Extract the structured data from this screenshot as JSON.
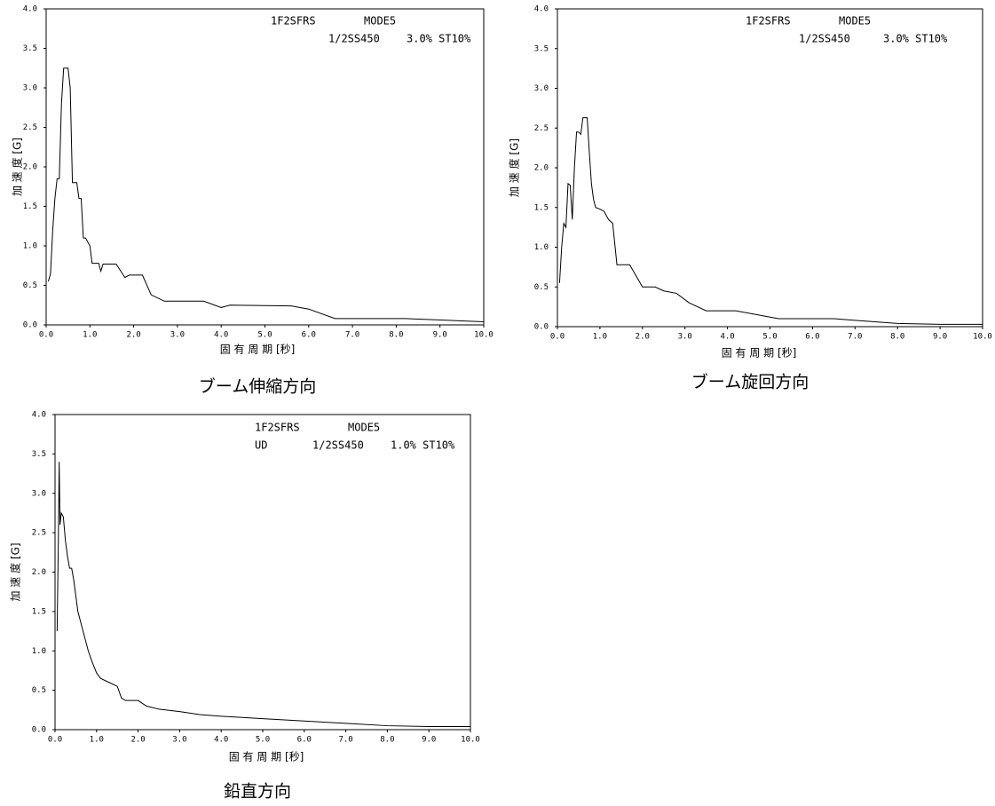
{
  "chart_data": [
    {
      "type": "line",
      "caption": "ブーム伸縮方向",
      "xlabel": "固 有 周 期 [秒]",
      "ylabel": "加 速 度 [G]",
      "annotations": [
        "1F2SFRS",
        "MODE5",
        "1/2SS450",
        "3.0% ST10%"
      ],
      "xlim": [
        0,
        10
      ],
      "ylim": [
        0,
        4
      ],
      "xticks": [
        {
          "value": 0,
          "label": "0.0"
        },
        {
          "value": 1,
          "label": "1.0"
        },
        {
          "value": 2,
          "label": "2.0"
        },
        {
          "value": 3,
          "label": "3.0"
        },
        {
          "value": 4,
          "label": "4.0"
        },
        {
          "value": 5,
          "label": "5.0"
        },
        {
          "value": 6,
          "label": "6.0"
        },
        {
          "value": 7,
          "label": "7.0"
        },
        {
          "value": 8,
          "label": "8.0"
        },
        {
          "value": 9,
          "label": "9.0"
        },
        {
          "value": 10,
          "label": "10.0"
        }
      ],
      "yticks": [
        {
          "value": 0,
          "label": "0.0"
        },
        0.5,
        {
          "value": 1,
          "label": "1.0"
        },
        1.5,
        {
          "value": 2,
          "label": "2.0"
        },
        2.5,
        {
          "value": 3,
          "label": "3.0"
        },
        3.5,
        {
          "value": 4,
          "label": "4.0"
        }
      ],
      "x": [
        0.05,
        0.1,
        0.15,
        0.2,
        0.25,
        0.3,
        0.35,
        0.4,
        0.5,
        0.55,
        0.6,
        0.7,
        0.75,
        0.8,
        0.85,
        0.9,
        1.0,
        1.05,
        1.2,
        1.25,
        1.3,
        1.6,
        1.8,
        1.9,
        2.2,
        2.4,
        2.7,
        3.6,
        4.0,
        4.2,
        5.6,
        6.0,
        6.6,
        8.2,
        10.0
      ],
      "series": [
        {
          "color": "#000000",
          "values": [
            0.55,
            0.65,
            1.2,
            1.6,
            1.85,
            1.85,
            2.8,
            3.25,
            3.25,
            3.0,
            1.8,
            1.8,
            1.6,
            1.6,
            1.1,
            1.1,
            1.0,
            0.78,
            0.78,
            0.68,
            0.77,
            0.77,
            0.6,
            0.63,
            0.63,
            0.38,
            0.3,
            0.3,
            0.22,
            0.25,
            0.24,
            0.2,
            0.08,
            0.08,
            0.04
          ]
        }
      ]
    },
    {
      "type": "line",
      "caption": "ブーム旋回方向",
      "xlabel": "固 有 周 期 [秒]",
      "ylabel": "加 速 度 [G]",
      "annotations": [
        "1F2SFRS",
        "MODE5",
        "1/2SS450",
        "3.0% ST10%"
      ],
      "xlim": [
        0,
        10
      ],
      "ylim": [
        0,
        4
      ],
      "xticks": [
        {
          "value": 0,
          "label": "0.0"
        },
        {
          "value": 1,
          "label": "1.0"
        },
        {
          "value": 2,
          "label": "2.0"
        },
        {
          "value": 3,
          "label": "3.0"
        },
        {
          "value": 4,
          "label": "4.0"
        },
        {
          "value": 5,
          "label": "5.0"
        },
        {
          "value": 6,
          "label": "6.0"
        },
        {
          "value": 7,
          "label": "7.0"
        },
        {
          "value": 8,
          "label": "8.0"
        },
        {
          "value": 9,
          "label": "9.0"
        },
        {
          "value": 10,
          "label": "10.0"
        }
      ],
      "yticks": [
        {
          "value": 0,
          "label": "0.0"
        },
        0.5,
        {
          "value": 1,
          "label": "1.0"
        },
        1.5,
        {
          "value": 2,
          "label": "2.0"
        },
        2.5,
        {
          "value": 3,
          "label": "3.0"
        },
        3.5,
        {
          "value": 4,
          "label": "4.0"
        }
      ],
      "x": [
        0.05,
        0.1,
        0.15,
        0.2,
        0.25,
        0.3,
        0.35,
        0.4,
        0.45,
        0.5,
        0.55,
        0.6,
        0.7,
        0.75,
        0.8,
        0.85,
        0.9,
        1.0,
        1.1,
        1.2,
        1.3,
        1.4,
        1.7,
        2.0,
        2.3,
        2.5,
        2.8,
        3.1,
        3.5,
        4.2,
        5.2,
        6.5,
        7.0,
        8.0,
        9.0,
        10.0
      ],
      "series": [
        {
          "color": "#000000",
          "values": [
            0.55,
            1.0,
            1.3,
            1.25,
            1.8,
            1.78,
            1.35,
            2.0,
            2.45,
            2.45,
            2.42,
            2.63,
            2.63,
            2.2,
            1.8,
            1.6,
            1.5,
            1.48,
            1.45,
            1.35,
            1.3,
            0.78,
            0.78,
            0.5,
            0.5,
            0.45,
            0.42,
            0.3,
            0.2,
            0.2,
            0.1,
            0.1,
            0.08,
            0.04,
            0.03,
            0.03
          ]
        }
      ]
    },
    {
      "type": "line",
      "caption": "鉛直方向",
      "xlabel": "固 有 周 期 [秒]",
      "ylabel": "加 速 度 [G]",
      "annotations": [
        "1F2SFRS",
        "MODE5",
        "UD",
        "1/2SS450",
        "1.0% ST10%"
      ],
      "xlim": [
        0,
        10
      ],
      "ylim": [
        0,
        4
      ],
      "xticks": [
        {
          "value": 0,
          "label": "0.0"
        },
        {
          "value": 1,
          "label": "1.0"
        },
        {
          "value": 2,
          "label": "2.0"
        },
        {
          "value": 3,
          "label": "3.0"
        },
        {
          "value": 4,
          "label": "4.0"
        },
        {
          "value": 5,
          "label": "5.0"
        },
        {
          "value": 6,
          "label": "6.0"
        },
        {
          "value": 7,
          "label": "7.0"
        },
        {
          "value": 8,
          "label": "8.0"
        },
        {
          "value": 9,
          "label": "9.0"
        },
        {
          "value": 10,
          "label": "10.0"
        }
      ],
      "yticks": [
        {
          "value": 0,
          "label": "0.0"
        },
        0.5,
        {
          "value": 1,
          "label": "1.0"
        },
        1.5,
        {
          "value": 2,
          "label": "2.0"
        },
        2.5,
        {
          "value": 3,
          "label": "3.0"
        },
        3.5,
        {
          "value": 4,
          "label": "4.0"
        }
      ],
      "x": [
        0.05,
        0.08,
        0.1,
        0.12,
        0.15,
        0.2,
        0.25,
        0.3,
        0.35,
        0.4,
        0.45,
        0.5,
        0.55,
        0.6,
        0.65,
        0.7,
        0.8,
        0.9,
        1.0,
        1.1,
        1.3,
        1.5,
        1.6,
        1.7,
        2.0,
        2.2,
        2.5,
        3.0,
        3.5,
        4.0,
        5.0,
        6.0,
        7.0,
        8.0,
        9.0,
        10.0
      ],
      "series": [
        {
          "color": "#000000",
          "values": [
            1.25,
            2.4,
            3.4,
            2.6,
            2.75,
            2.7,
            2.4,
            2.2,
            2.05,
            2.05,
            1.9,
            1.7,
            1.5,
            1.4,
            1.3,
            1.2,
            1.0,
            0.85,
            0.72,
            0.65,
            0.6,
            0.55,
            0.4,
            0.37,
            0.37,
            0.3,
            0.26,
            0.23,
            0.19,
            0.17,
            0.14,
            0.11,
            0.08,
            0.05,
            0.04,
            0.04
          ]
        }
      ]
    }
  ]
}
